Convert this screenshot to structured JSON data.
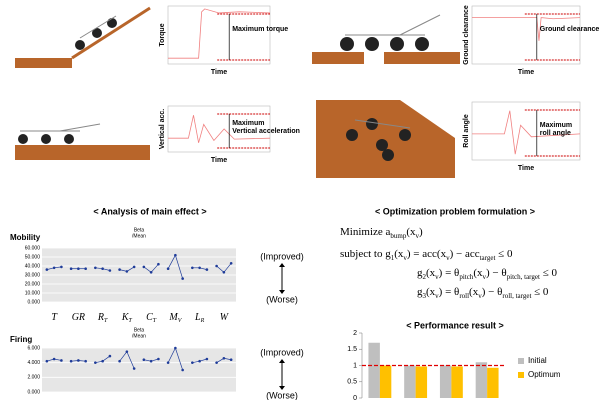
{
  "scenarios": [
    {
      "y_label": "Torque",
      "x_label": "Time",
      "annotation": [
        "Maximum torque"
      ]
    },
    {
      "y_label": "Ground clearance",
      "x_label": "Time",
      "annotation": [
        "Ground clearance"
      ]
    },
    {
      "y_label": "Vertical acc.",
      "x_label": "Time",
      "annotation": [
        "Maximum",
        "Vertical acceleration"
      ]
    },
    {
      "y_label": "Roll angle",
      "x_label": "Time",
      "annotation": [
        "Maximum",
        "roll angle"
      ]
    }
  ],
  "headings": {
    "main_effect": "< Analysis of main effect >",
    "optimization": "< Optimization problem formulation >",
    "performance": "< Performance result >"
  },
  "direction": {
    "improved": "(Improved)",
    "worse": "(Worse)"
  },
  "formulation": [
    [
      "Minimize  a",
      {
        "sub": "bump"
      },
      "(x",
      {
        "sub": "v"
      },
      ")"
    ],
    [
      "subject to  g",
      {
        "sub": "1"
      },
      "(x",
      {
        "sub": "v"
      },
      ") = acc(x",
      {
        "sub": "v"
      },
      ") − acc",
      {
        "sub": "target"
      },
      " ≤ 0"
    ],
    [
      "g",
      {
        "sub": "2"
      },
      "(x",
      {
        "sub": "v"
      },
      ") = θ",
      {
        "sub": "pitch"
      },
      "(x",
      {
        "sub": "v"
      },
      ") − θ",
      {
        "sub": "pitch, target"
      },
      " ≤ 0"
    ],
    [
      "g",
      {
        "sub": "3"
      },
      "(x",
      {
        "sub": "v"
      },
      ") = θ",
      {
        "sub": "roll"
      },
      "(x",
      {
        "sub": "v"
      },
      ") − θ",
      {
        "sub": "roll, target"
      },
      " ≤ 0"
    ]
  ],
  "chart_data": [
    {
      "type": "line",
      "title": "Mobility",
      "subtitle": [
        "Beta",
        "/Mean"
      ],
      "color": "#1f3c99",
      "categories": [
        {
          "main": "T"
        },
        {
          "main": "GR"
        },
        {
          "main": "R",
          "sub": "T"
        },
        {
          "main": "K",
          "sub": "T"
        },
        {
          "main": "C",
          "sub": "T"
        },
        {
          "main": "M",
          "sub": "V"
        },
        {
          "main": "L",
          "sub": "R"
        },
        {
          "main": "W"
        }
      ],
      "values": [
        [
          36,
          38,
          39
        ],
        [
          37,
          37,
          37
        ],
        [
          38,
          37,
          35
        ],
        [
          36,
          34,
          39
        ],
        [
          39,
          33,
          42
        ],
        [
          37,
          52,
          26
        ],
        [
          38,
          38,
          36
        ],
        [
          40,
          33,
          43
        ]
      ],
      "ylim": [
        0,
        60
      ],
      "yticks": [
        {
          "value": 0,
          "label": "0.000"
        },
        {
          "value": 10,
          "label": "10.000"
        },
        {
          "value": 20,
          "label": "20.000"
        },
        {
          "value": 30,
          "label": "30.000"
        },
        {
          "value": 40,
          "label": "40.000"
        },
        {
          "value": 50,
          "label": "50.000"
        },
        {
          "value": 60,
          "label": "60.000"
        }
      ],
      "grid": true
    },
    {
      "type": "line",
      "title": "Firing",
      "subtitle": [
        "Beta",
        "/Mean"
      ],
      "color": "#1f3c99",
      "values": [
        [
          4.2,
          4.5,
          4.3
        ],
        [
          4.2,
          4.3,
          4.2
        ],
        [
          4.0,
          4.2,
          4.9
        ],
        [
          4.2,
          5.5,
          3.2
        ],
        [
          4.4,
          4.2,
          4.5
        ],
        [
          4.0,
          6.0,
          3.0
        ],
        [
          4.0,
          4.2,
          4.5
        ],
        [
          4.0,
          4.6,
          4.4
        ]
      ],
      "ylim": [
        0,
        6
      ],
      "yticks": [
        {
          "value": 0,
          "label": "0.000"
        },
        {
          "value": 2,
          "label": "2.000"
        },
        {
          "value": 4,
          "label": "4.000"
        },
        {
          "value": 6,
          "label": "6.000"
        }
      ],
      "grid": true
    },
    {
      "type": "bar",
      "categories": [
        null,
        null,
        null,
        null
      ],
      "series": [
        {
          "name": "Initial",
          "color": "#bfbfbf",
          "values": [
            1.7,
            1.0,
            1.0,
            1.1
          ]
        },
        {
          "name": "Optimum",
          "color": "#ffc000",
          "values": [
            1.0,
            0.97,
            0.97,
            0.93
          ]
        }
      ],
      "reference": 1,
      "reference_color": "#e00000",
      "ylim": [
        0,
        2
      ],
      "yticks": [
        0,
        0.5,
        1,
        1.5,
        2
      ],
      "legend": "right"
    }
  ]
}
